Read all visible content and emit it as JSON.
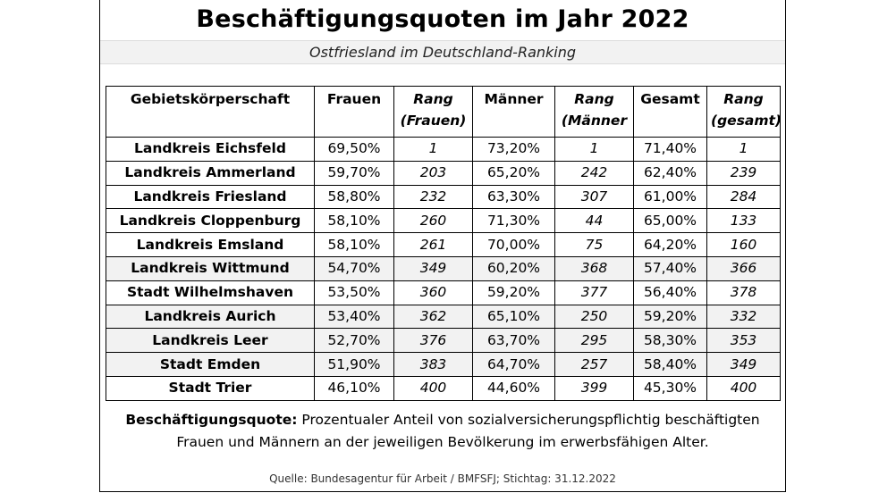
{
  "title": "Beschäftigungsquoten im Jahr 2022",
  "subtitle": "Ostfriesland im Deutschland-Ranking",
  "table": {
    "headers": [
      {
        "line1": "Gebietskörperschaft",
        "line2": ""
      },
      {
        "line1": "Frauen",
        "line2": ""
      },
      {
        "line1": "Rang",
        "line2": "(Frauen)"
      },
      {
        "line1": "Männer",
        "line2": ""
      },
      {
        "line1": "Rang",
        "line2": "(Männer"
      },
      {
        "line1": "Gesamt",
        "line2": ""
      },
      {
        "line1": "Rang",
        "line2": "(gesamt)"
      }
    ],
    "rows": [
      {
        "name": "Landkreis Eichsfeld",
        "frauen": "69,50%",
        "rang_frauen": "1",
        "maenner": "73,20%",
        "rang_maenner": "1",
        "gesamt": "71,40%",
        "rang_gesamt": "1",
        "shaded": false
      },
      {
        "name": "Landkreis Ammerland",
        "frauen": "59,70%",
        "rang_frauen": "203",
        "maenner": "65,20%",
        "rang_maenner": "242",
        "gesamt": "62,40%",
        "rang_gesamt": "239",
        "shaded": false
      },
      {
        "name": "Landkreis Friesland",
        "frauen": "58,80%",
        "rang_frauen": "232",
        "maenner": "63,30%",
        "rang_maenner": "307",
        "gesamt": "61,00%",
        "rang_gesamt": "284",
        "shaded": false
      },
      {
        "name": "Landkreis Cloppenburg",
        "frauen": "58,10%",
        "rang_frauen": "260",
        "maenner": "71,30%",
        "rang_maenner": "44",
        "gesamt": "65,00%",
        "rang_gesamt": "133",
        "shaded": false
      },
      {
        "name": "Landkreis Emsland",
        "frauen": "58,10%",
        "rang_frauen": "261",
        "maenner": "70,00%",
        "rang_maenner": "75",
        "gesamt": "64,20%",
        "rang_gesamt": "160",
        "shaded": false
      },
      {
        "name": "Landkreis Wittmund",
        "frauen": "54,70%",
        "rang_frauen": "349",
        "maenner": "60,20%",
        "rang_maenner": "368",
        "gesamt": "57,40%",
        "rang_gesamt": "366",
        "shaded": true
      },
      {
        "name": "Stadt Wilhelmshaven",
        "frauen": "53,50%",
        "rang_frauen": "360",
        "maenner": "59,20%",
        "rang_maenner": "377",
        "gesamt": "56,40%",
        "rang_gesamt": "378",
        "shaded": false
      },
      {
        "name": "Landkreis Aurich",
        "frauen": "53,40%",
        "rang_frauen": "362",
        "maenner": "65,10%",
        "rang_maenner": "250",
        "gesamt": "59,20%",
        "rang_gesamt": "332",
        "shaded": true
      },
      {
        "name": "Landkreis Leer",
        "frauen": "52,70%",
        "rang_frauen": "376",
        "maenner": "63,70%",
        "rang_maenner": "295",
        "gesamt": "58,30%",
        "rang_gesamt": "353",
        "shaded": true
      },
      {
        "name": "Stadt Emden",
        "frauen": "51,90%",
        "rang_frauen": "383",
        "maenner": "64,70%",
        "rang_maenner": "257",
        "gesamt": "58,40%",
        "rang_gesamt": "349",
        "shaded": true
      },
      {
        "name": "Stadt Trier",
        "frauen": "46,10%",
        "rang_frauen": "400",
        "maenner": "44,60%",
        "rang_maenner": "399",
        "gesamt": "45,30%",
        "rang_gesamt": "400",
        "shaded": false
      }
    ]
  },
  "definition": {
    "term": "Beschäftigungsquote:",
    "text_line1": " Prozentualer Anteil von sozialversicherungspflichtig beschäftigten",
    "text_line2": "Frauen und Männern an der jeweiligen Bevölkerung im erwerbsfähigen Alter."
  },
  "source": "Quelle: Bundesagentur für Arbeit / BMFSFJ; Stichtag: 31.12.2022",
  "colors": {
    "shade": "#f2f2f2",
    "border": "#000000"
  }
}
